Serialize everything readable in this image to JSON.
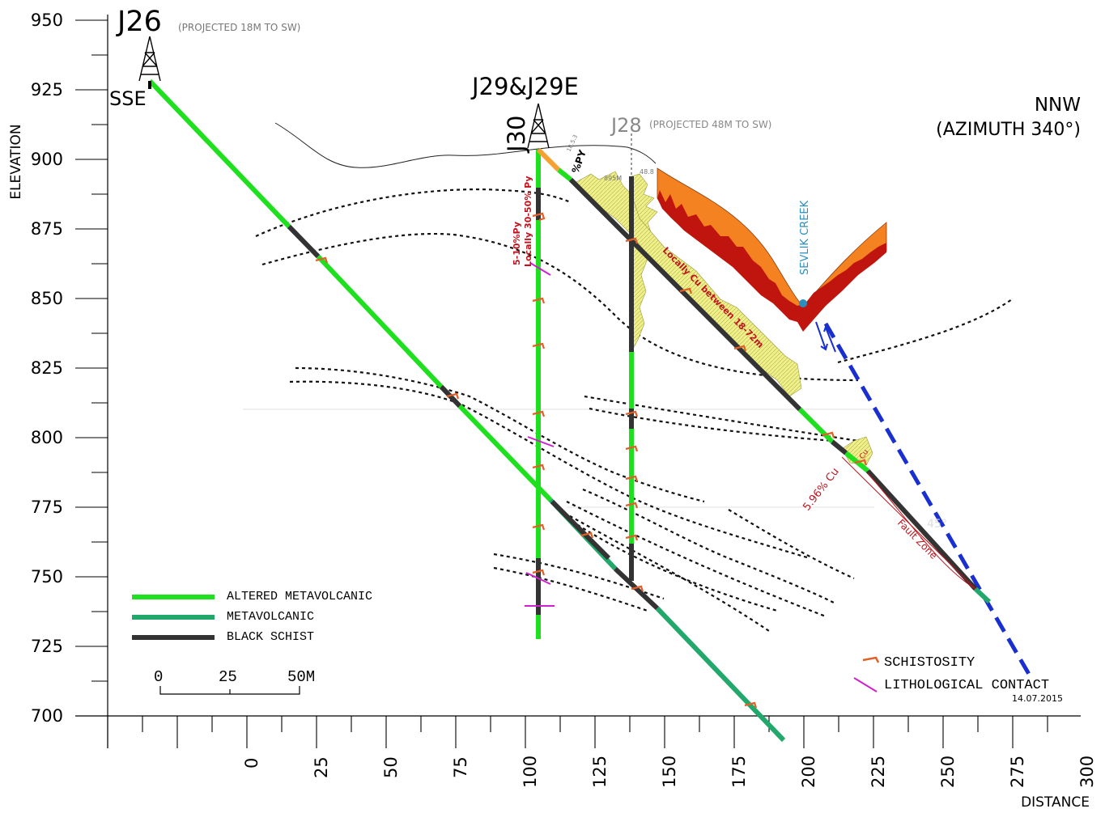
{
  "axes": {
    "y_title": "ELEVATION",
    "x_title": "DISTANCE",
    "y_ticks": [
      "950",
      "925",
      "900",
      "875",
      "850",
      "825",
      "800",
      "775",
      "750",
      "725",
      "700"
    ],
    "x_ticks": [
      "0",
      "25",
      "50",
      "75",
      "100",
      "125",
      "150",
      "175",
      "200",
      "225",
      "250",
      "275",
      "300"
    ]
  },
  "labels": {
    "sse": "SSE",
    "nnw": "NNW",
    "azimuth": "(AZIMUTH 340°)",
    "creek": "SEVLIK CREEK",
    "fault_zone": "Fault Zone",
    "cu_interval": "Locally Cu between 18-72m",
    "py_a": "5-10%Py",
    "py_b": "Locally 30-50% Py",
    "py_c": "%PY",
    "tiny_a": "18.5.3",
    "tiny_b": "895M",
    "tiny_c": "48.8",
    "cu_grade": "5.96% Cu",
    "cu_short": "Cu",
    "dip": "45°",
    "date": "14.07.2015"
  },
  "drillholes": {
    "j26": {
      "name": "J26",
      "note": "(PROJECTED 18M TO SW)"
    },
    "j29": {
      "name": "J29&J29E"
    },
    "j30": {
      "name": "J30"
    },
    "j28": {
      "name": "J28",
      "note": "(PROJECTED 48M TO SW)"
    }
  },
  "legend": {
    "items": [
      {
        "label": "ALTERED METAVOLCANIC",
        "color": "#1ee01e"
      },
      {
        "label": "METAVOLCANIC",
        "color": "#22a86a"
      },
      {
        "label": "BLACK SCHIST",
        "color": "#333333"
      }
    ],
    "schistosity": "SCHISTOSITY",
    "contact": "LITHOLOGICAL CONTACT"
  },
  "scale": {
    "labels": [
      "0",
      "25",
      "50M"
    ]
  },
  "colors": {
    "altered_metavolcanic": "#1ee01e",
    "metavolcanic": "#22a86a",
    "black_schist": "#333333",
    "schistosity": "#e0602a",
    "contact": "#d020d0",
    "fault": "#1a2fd0",
    "assay_fill": "#f0f08a",
    "anomaly_outer": "#f58220",
    "anomaly_inner": "#c0140e",
    "creek": "#2a8fc0",
    "annotation_red": "#c0141e"
  }
}
